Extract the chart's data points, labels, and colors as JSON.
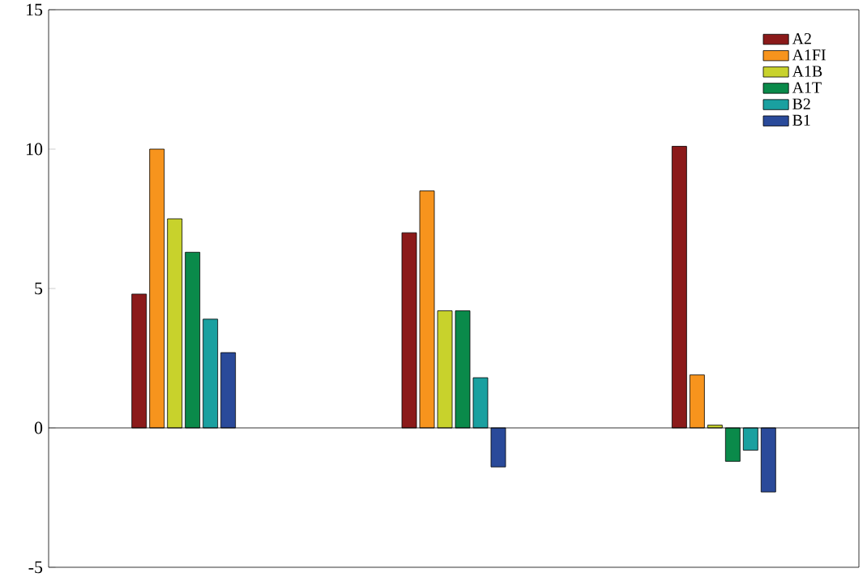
{
  "chart_data": {
    "type": "bar",
    "categories": [
      null,
      null,
      null
    ],
    "series": [
      {
        "name": "A2",
        "color": "#8b1a1a",
        "values": [
          4.8,
          7.0,
          10.1
        ]
      },
      {
        "name": "A1FI",
        "color": "#f7941d",
        "values": [
          10.0,
          8.5,
          1.9
        ]
      },
      {
        "name": "A1B",
        "color": "#c8d22c",
        "values": [
          7.5,
          4.2,
          0.1
        ]
      },
      {
        "name": "A1T",
        "color": "#0a8a4a",
        "values": [
          6.3,
          4.2,
          -1.2
        ]
      },
      {
        "name": "B2",
        "color": "#1aa0a0",
        "values": [
          3.9,
          1.8,
          -0.8
        ]
      },
      {
        "name": "B1",
        "color": "#2a4a9a",
        "values": [
          2.7,
          -1.4,
          -2.3
        ]
      }
    ],
    "ylim": [
      -5,
      15
    ],
    "yticks": [
      -5,
      0,
      5,
      10,
      15
    ],
    "ref_lines": [
      {
        "axis": "y",
        "value": 0,
        "color": "#000000"
      }
    ],
    "grid": false,
    "legend": "top right"
  }
}
